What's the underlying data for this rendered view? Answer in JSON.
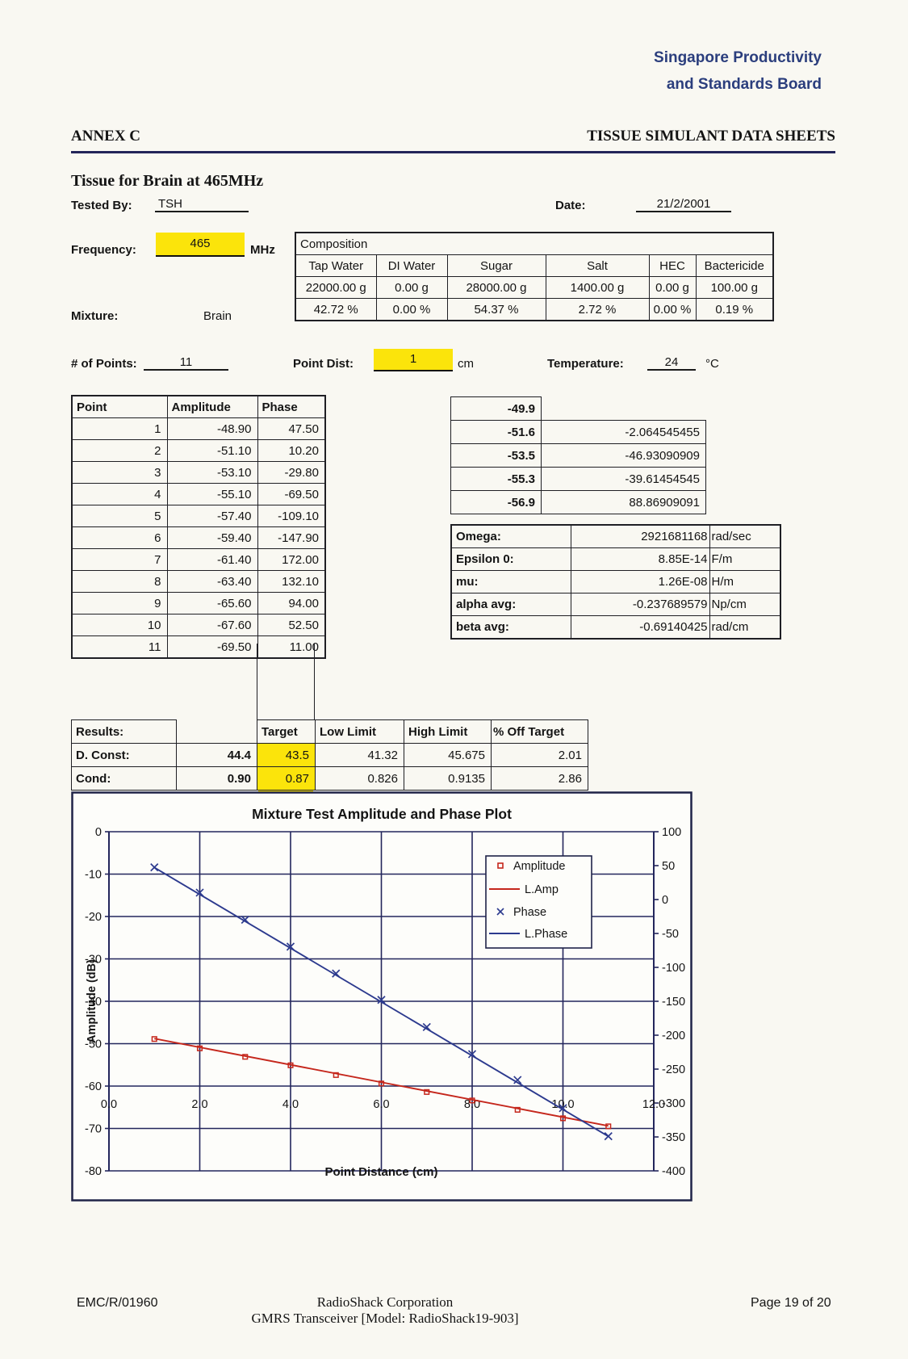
{
  "header": {
    "org_line1": "Singapore Productivity",
    "org_line2": "and Standards Board",
    "annex_left": "ANNEX C",
    "annex_right": "TISSUE SIMULANT DATA SHEETS"
  },
  "info": {
    "title": "Tissue  for Brain at 465MHz",
    "tested_by_label": "Tested By:",
    "tested_by": "TSH",
    "date_label": "Date:",
    "date": "21/2/2001",
    "frequency_label": "Frequency:",
    "frequency": "465",
    "frequency_unit": "MHz",
    "mixture_label": "Mixture:",
    "mixture": "Brain",
    "num_points_label": "# of Points:",
    "num_points": "11",
    "point_dist_label": "Point Dist:",
    "point_dist": "1",
    "point_dist_unit": "cm",
    "temperature_label": "Temperature:",
    "temperature": "24",
    "temperature_unit": "°C"
  },
  "composition": {
    "title": "Composition",
    "columns": [
      {
        "name": "Tap Water",
        "grams": "22000.00 g",
        "percent": "42.72 %"
      },
      {
        "name": "DI Water",
        "grams": "0.00 g",
        "percent": "0.00 %"
      },
      {
        "name": "Sugar",
        "grams": "28000.00 g",
        "percent": "54.37 %"
      },
      {
        "name": "Salt",
        "grams": "1400.00 g",
        "percent": "2.72 %"
      },
      {
        "name": "HEC",
        "grams": "0.00 g",
        "percent": "0.00 %"
      },
      {
        "name": "Bactericide",
        "grams": "100.00 g",
        "percent": "0.19 %"
      }
    ]
  },
  "points_table": {
    "headers": [
      "Point",
      "Amplitude",
      "Phase"
    ],
    "rows": [
      [
        "1",
        "-48.90",
        "47.50"
      ],
      [
        "2",
        "-51.10",
        "10.20"
      ],
      [
        "3",
        "-53.10",
        "-29.80"
      ],
      [
        "4",
        "-55.10",
        "-69.50"
      ],
      [
        "5",
        "-57.40",
        "-109.10"
      ],
      [
        "6",
        "-59.40",
        "-147.90"
      ],
      [
        "7",
        "-61.40",
        "172.00"
      ],
      [
        "8",
        "-63.40",
        "132.10"
      ],
      [
        "9",
        "-65.60",
        "94.00"
      ],
      [
        "10",
        "-67.60",
        "52.50"
      ],
      [
        "11",
        "-69.50",
        "11.00"
      ]
    ]
  },
  "delta_table": {
    "rows": [
      [
        "-49.9",
        ""
      ],
      [
        "-51.6",
        "-2.064545455"
      ],
      [
        "-53.5",
        "-46.93090909"
      ],
      [
        "-55.3",
        "-39.61454545"
      ],
      [
        "-56.9",
        "88.86909091"
      ]
    ]
  },
  "constants": {
    "rows": [
      {
        "label": "Omega:",
        "value": "2921681168",
        "unit": "rad/sec"
      },
      {
        "label": "Epsilon 0:",
        "value": "8.85E-14",
        "unit": "F/m"
      },
      {
        "label": "mu:",
        "value": "1.26E-08",
        "unit": "H/m"
      },
      {
        "label": "alpha avg:",
        "value": "-0.237689579",
        "unit": "Np/cm"
      },
      {
        "label": "beta avg:",
        "value": "-0.69140425",
        "unit": "rad/cm"
      }
    ]
  },
  "results": {
    "headers": [
      "Results:",
      "",
      "Target",
      "Low Limit",
      "High Limit",
      "% Off Target"
    ],
    "rows": [
      {
        "label": "D. Const:",
        "value": "44.4",
        "target": "43.5",
        "low": "41.32",
        "high": "45.675",
        "off": "2.01"
      },
      {
        "label": "Cond:",
        "value": "0.90",
        "target": "0.87",
        "low": "0.826",
        "high": "0.9135",
        "off": "2.86"
      }
    ]
  },
  "chart_data": {
    "type": "line",
    "title": "Mixture Test Amplitude and Phase Plot",
    "xlabel": "Point Distance (cm)",
    "ylabel": "Amplitude (dB)",
    "x": [
      1,
      2,
      3,
      4,
      5,
      6,
      7,
      8,
      9,
      10,
      11
    ],
    "series": [
      {
        "name": "Amplitude",
        "axis": "left",
        "marker": "square",
        "color": "#c5271c",
        "values": [
          -48.9,
          -51.1,
          -53.1,
          -55.1,
          -57.4,
          -59.4,
          -61.4,
          -63.4,
          -65.6,
          -67.6,
          -69.5
        ]
      },
      {
        "name": "L.Amp",
        "axis": "left",
        "type": "fit-line",
        "color": "#c5271c",
        "x": [
          1,
          11
        ],
        "values": [
          -48.8,
          -69.4
        ]
      },
      {
        "name": "Phase",
        "axis": "right",
        "marker": "x",
        "color": "#2c3a8e",
        "values": [
          47.5,
          10.2,
          -29.8,
          -69.5,
          -109.1,
          -147.9,
          -188.0,
          -227.9,
          -266.0,
          -307.5,
          -349.0
        ]
      },
      {
        "name": "L.Phase",
        "axis": "right",
        "type": "fit-line",
        "color": "#2c3a8e",
        "x": [
          1,
          11
        ],
        "values": [
          47.2,
          -349.2
        ]
      }
    ],
    "axes": {
      "left": {
        "min": -80,
        "max": 0,
        "ticks": [
          0,
          -10,
          -20,
          -30,
          -40,
          -50,
          -60,
          -70,
          -80
        ]
      },
      "right": {
        "min": -400,
        "max": 100,
        "ticks": [
          100,
          50,
          0,
          -50,
          -100,
          -150,
          -200,
          -250,
          -300,
          -350,
          -400
        ]
      },
      "x": {
        "min": 0,
        "max": 12,
        "tick_values": [
          0,
          2,
          4,
          6,
          8,
          10,
          12
        ],
        "tick_labels": [
          "0.0",
          "2.0",
          "4.0",
          "6.0",
          "8.0",
          "10.0",
          "12.0"
        ]
      }
    },
    "legend": [
      "Amplitude",
      "L.Amp",
      "Phase",
      "L.Phase"
    ],
    "grid": true,
    "legend_position": "inside-right"
  },
  "footer": {
    "left": "EMC/R/01960",
    "center_line1": "RadioShack Corporation",
    "center_line2": "GMRS Transceiver [Model: RadioShack19-903]",
    "right": "Page 19 of 20"
  },
  "colors": {
    "highlight": "#fbe40b",
    "header_blue": "#2b3e7d",
    "amplitude_red": "#c5271c",
    "phase_blue": "#2c3a8e",
    "rule_navy": "#23255a"
  }
}
